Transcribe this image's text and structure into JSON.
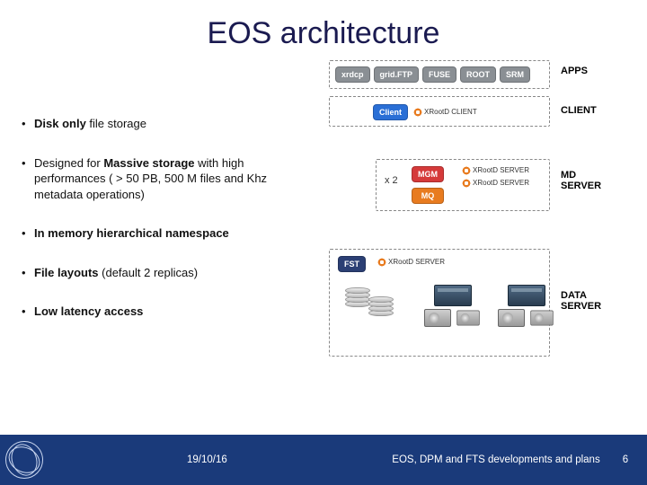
{
  "title": "EOS architecture",
  "bullets": [
    "<b>Disk only</b> file storage",
    "Designed for <b>Massive storage</b> with high performances ( > 50 PB, 500 M files and Khz metadata operations)",
    "<b>In memory hierarchical namespace</b>",
    "<b>File layouts</b> (default 2 replicas)",
    "<b>Low latency access</b>"
  ],
  "diagram": {
    "apps": [
      "xrdcp",
      "grid.FTP",
      "FUSE",
      "ROOT",
      "SRM"
    ],
    "apps_label": "APPS",
    "client_label_pill": "Client",
    "xrootd_client": "XRootD CLIENT",
    "client_label": "CLIENT",
    "x2": "x 2",
    "mgm": "MGM",
    "mq": "MQ",
    "xrootd_server": "XRootD SERVER",
    "md_label": "MD SERVER",
    "fst": "FST",
    "data_label": "DATA SERVER"
  },
  "footer": {
    "date": "19/10/16",
    "caption": "EOS, DPM and FTS developments and plans",
    "page": "6"
  },
  "colors": {
    "title": "#1a1a50",
    "footer_bg": "#1a3a7a"
  }
}
